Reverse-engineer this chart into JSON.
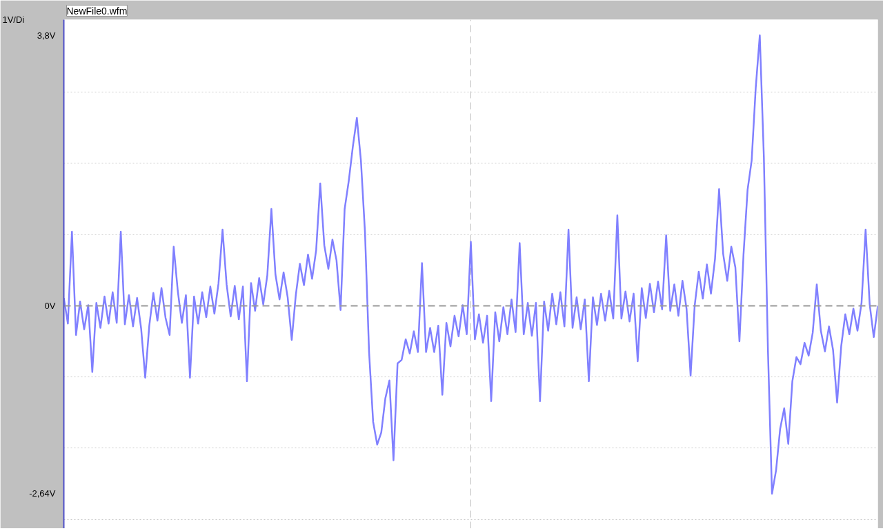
{
  "chart_data": {
    "type": "line",
    "title": "NewFile0.wfm",
    "ylabel": "1V/Di",
    "categories": [
      null,
      null,
      null,
      null,
      null,
      null,
      null,
      null,
      null,
      null,
      null,
      null,
      null,
      null,
      null,
      null,
      null,
      null,
      null,
      null,
      null,
      null,
      null,
      null,
      null,
      null,
      null,
      null,
      null,
      null,
      null,
      null,
      null,
      null,
      null,
      null,
      null,
      null,
      null,
      null,
      null,
      null,
      null,
      null,
      null,
      null,
      null,
      null,
      null,
      null,
      null,
      null,
      null,
      null,
      null,
      null,
      null,
      null,
      null,
      null,
      null,
      null,
      null,
      null,
      null,
      null,
      null,
      null,
      null,
      null,
      null,
      null,
      null,
      null,
      null,
      null,
      null,
      null,
      null,
      null,
      null,
      null,
      null,
      null,
      null,
      null,
      null,
      null,
      null,
      null,
      null,
      null,
      null,
      null,
      null,
      null,
      null,
      null,
      null,
      null,
      null,
      null,
      null,
      null,
      null,
      null,
      null,
      null,
      null,
      null,
      null,
      null,
      null,
      null,
      null,
      null,
      null,
      null,
      null,
      null,
      null,
      null,
      null,
      null,
      null,
      null,
      null,
      null,
      null,
      null,
      null,
      null,
      null,
      null,
      null,
      null,
      null,
      null,
      null,
      null,
      null,
      null,
      null,
      null,
      null,
      null,
      null,
      null,
      null,
      null,
      null,
      null,
      null,
      null,
      null,
      null,
      null,
      null,
      null,
      null,
      null,
      null,
      null,
      null,
      null,
      null,
      null,
      null,
      null,
      null,
      null,
      null,
      null,
      null,
      null,
      null,
      null,
      null,
      null,
      null,
      null,
      null,
      null,
      null,
      null,
      null,
      null,
      null,
      null,
      null,
      null,
      null,
      null,
      null,
      null,
      null,
      null,
      null,
      null,
      null,
      null
    ],
    "series": [
      {
        "color": "#8080ff",
        "values": [
          0.11,
          -0.25,
          1.04,
          -0.41,
          0.06,
          -0.33,
          0.01,
          -0.93,
          0.04,
          -0.31,
          0.13,
          -0.25,
          0.19,
          -0.24,
          1.04,
          -0.26,
          0.15,
          -0.29,
          0.11,
          -0.32,
          -1.01,
          -0.28,
          0.18,
          -0.21,
          0.25,
          -0.17,
          -0.41,
          0.83,
          0.21,
          -0.24,
          0.15,
          -1.01,
          0.13,
          -0.25,
          0.19,
          -0.16,
          0.27,
          -0.11,
          0.31,
          1.07,
          0.3,
          -0.15,
          0.28,
          -0.19,
          0.27,
          -1.06,
          0.32,
          -0.07,
          0.39,
          0.02,
          0.43,
          1.36,
          0.44,
          0.09,
          0.47,
          0.12,
          -0.48,
          0.15,
          0.59,
          0.29,
          0.72,
          0.38,
          0.78,
          1.72,
          0.85,
          0.52,
          0.93,
          0.64,
          -0.06,
          1.36,
          1.75,
          2.23,
          2.64,
          2.04,
          1.03,
          -0.65,
          -1.63,
          -1.95,
          -1.78,
          -1.3,
          -1.05,
          -2.17,
          -0.81,
          -0.76,
          -0.47,
          -0.67,
          -0.36,
          -0.65,
          0.6,
          -0.65,
          -0.31,
          -0.65,
          -0.28,
          -1.25,
          -0.24,
          -0.57,
          -0.14,
          -0.43,
          0.01,
          -0.4,
          0.9,
          -0.47,
          -0.12,
          -0.52,
          -0.14,
          -1.34,
          -0.09,
          -0.5,
          -0.02,
          -0.4,
          0.09,
          -0.37,
          0.88,
          -0.4,
          0.04,
          -0.42,
          0.04,
          -1.34,
          0.06,
          -0.35,
          0.17,
          -0.26,
          0.19,
          -0.29,
          1.07,
          -0.31,
          0.12,
          -0.33,
          0.09,
          -1.06,
          0.12,
          -0.27,
          0.17,
          -0.21,
          0.21,
          -0.18,
          1.27,
          -0.18,
          0.2,
          -0.22,
          0.17,
          -0.78,
          0.25,
          -0.17,
          0.31,
          -0.09,
          0.34,
          -0.05,
          0.99,
          -0.07,
          0.3,
          -0.14,
          0.35,
          -0.04,
          -0.98,
          0.0,
          0.48,
          0.1,
          0.58,
          0.17,
          0.66,
          1.64,
          0.73,
          0.35,
          0.83,
          0.54,
          -0.5,
          0.72,
          1.63,
          2.04,
          3.06,
          3.8,
          2.09,
          -0.62,
          -2.64,
          -2.31,
          -1.73,
          -1.44,
          -1.94,
          -1.06,
          -0.72,
          -0.82,
          -0.52,
          -0.7,
          -0.38,
          0.3,
          -0.35,
          -0.64,
          -0.29,
          -0.62,
          -1.36,
          -0.57,
          -0.12,
          -0.4,
          -0.04,
          -0.35,
          0.04,
          1.07,
          0.02,
          -0.44,
          0.0
        ]
      }
    ],
    "ylim": [
      -3.13,
      4.02
    ],
    "yticks": [
      {
        "value": -3,
        "label": null
      },
      {
        "value": -2.64,
        "label": "-2,64V"
      },
      {
        "value": -2,
        "label": null
      },
      {
        "value": -1,
        "label": null
      },
      {
        "value": 0,
        "label": "0V"
      },
      {
        "value": 1,
        "label": null
      },
      {
        "value": 2,
        "label": null
      },
      {
        "value": 3,
        "label": null
      },
      {
        "value": 3.8,
        "label": "3,8V"
      }
    ],
    "grid": "y",
    "tick_labels": "y",
    "line_style": "solid",
    "ref_lines": [
      {
        "axis": "y",
        "value": 0,
        "color": "#9a9a9a",
        "line_style": "dashed"
      }
    ]
  }
}
